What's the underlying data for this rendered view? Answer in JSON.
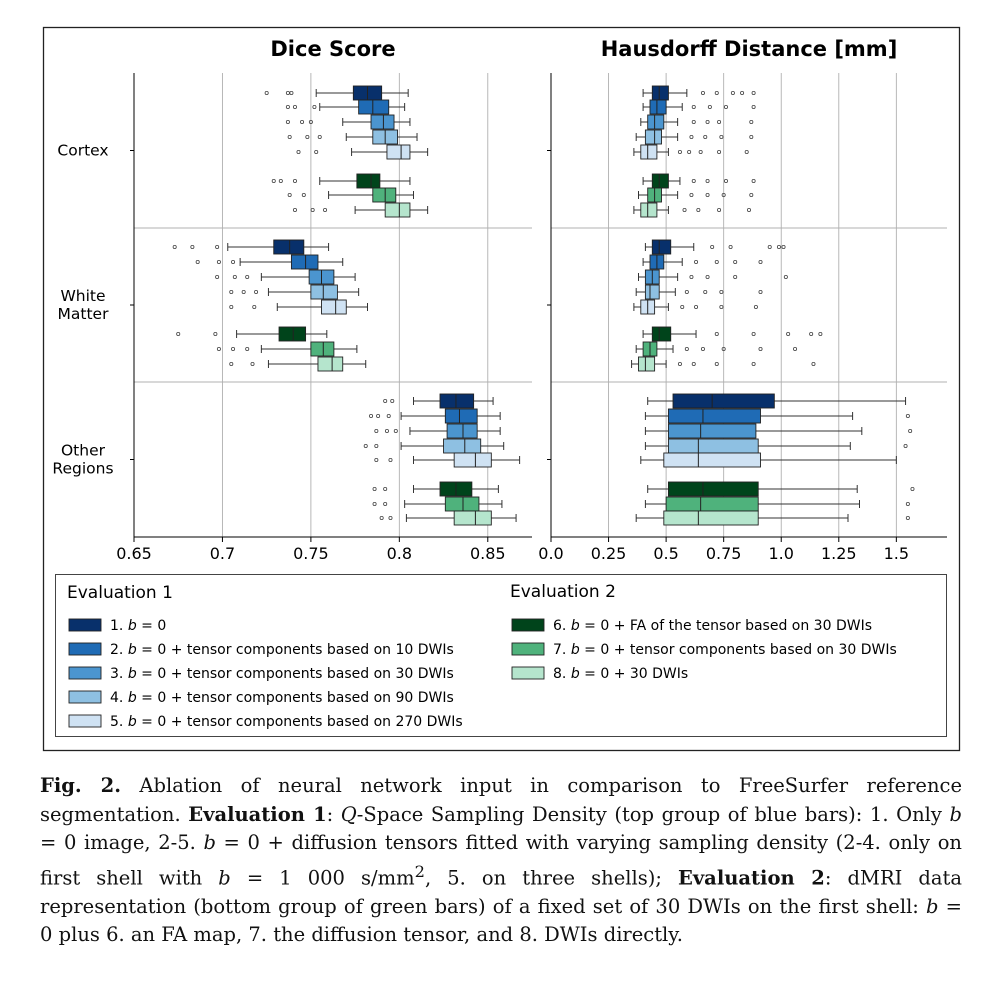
{
  "chart_data": {
    "type": "boxplot",
    "panels": [
      {
        "title": "Dice Score",
        "xlim": [
          0.65,
          0.875
        ],
        "ticks": [
          0.65,
          0.7,
          0.75,
          0.8,
          0.85
        ],
        "tick_labels": [
          "0.65",
          "0.7",
          "0.75",
          "0.8",
          "0.85"
        ],
        "regions": [
          {
            "label": "Cortex",
            "boxes": [
              {
                "series": 1,
                "whislo": 0.753,
                "q1": 0.774,
                "med": 0.782,
                "q3": 0.79,
                "whishi": 0.805,
                "fliers": [
                  0.725,
                  0.737,
                  0.739
                ]
              },
              {
                "series": 2,
                "whislo": 0.755,
                "q1": 0.777,
                "med": 0.785,
                "q3": 0.794,
                "whishi": 0.803,
                "fliers": [
                  0.737,
                  0.741,
                  0.752
                ]
              },
              {
                "series": 3,
                "whislo": 0.768,
                "q1": 0.784,
                "med": 0.791,
                "q3": 0.797,
                "whishi": 0.806,
                "fliers": [
                  0.737,
                  0.745,
                  0.75
                ]
              },
              {
                "series": 4,
                "whislo": 0.77,
                "q1": 0.785,
                "med": 0.792,
                "q3": 0.799,
                "whishi": 0.81,
                "fliers": [
                  0.738,
                  0.748,
                  0.755
                ]
              },
              {
                "series": 5,
                "whislo": 0.773,
                "q1": 0.793,
                "med": 0.801,
                "q3": 0.806,
                "whishi": 0.816,
                "fliers": [
                  0.743,
                  0.753
                ]
              }
            ],
            "boxes_eval2": [
              {
                "series": 6,
                "whislo": 0.755,
                "q1": 0.776,
                "med": 0.784,
                "q3": 0.789,
                "whishi": 0.806,
                "fliers": [
                  0.729,
                  0.733,
                  0.741
                ]
              },
              {
                "series": 7,
                "whislo": 0.76,
                "q1": 0.785,
                "med": 0.792,
                "q3": 0.798,
                "whishi": 0.808,
                "fliers": [
                  0.738,
                  0.746
                ]
              },
              {
                "series": 8,
                "whislo": 0.775,
                "q1": 0.792,
                "med": 0.8,
                "q3": 0.806,
                "whishi": 0.816,
                "fliers": [
                  0.741,
                  0.751,
                  0.758
                ]
              }
            ]
          },
          {
            "label": "White Matter",
            "boxes": [
              {
                "series": 1,
                "whislo": 0.703,
                "q1": 0.729,
                "med": 0.738,
                "q3": 0.746,
                "whishi": 0.76,
                "fliers": [
                  0.673,
                  0.683,
                  0.697
                ]
              },
              {
                "series": 2,
                "whislo": 0.71,
                "q1": 0.739,
                "med": 0.747,
                "q3": 0.754,
                "whishi": 0.768,
                "fliers": [
                  0.686,
                  0.698,
                  0.706
                ]
              },
              {
                "series": 3,
                "whislo": 0.722,
                "q1": 0.749,
                "med": 0.756,
                "q3": 0.763,
                "whishi": 0.775,
                "fliers": [
                  0.697,
                  0.707,
                  0.714
                ]
              },
              {
                "series": 4,
                "whislo": 0.726,
                "q1": 0.75,
                "med": 0.757,
                "q3": 0.765,
                "whishi": 0.777,
                "fliers": [
                  0.705,
                  0.712,
                  0.719
                ]
              },
              {
                "series": 5,
                "whislo": 0.731,
                "q1": 0.756,
                "med": 0.764,
                "q3": 0.77,
                "whishi": 0.782,
                "fliers": [
                  0.705,
                  0.718
                ]
              }
            ],
            "boxes_eval2": [
              {
                "series": 6,
                "whislo": 0.708,
                "q1": 0.732,
                "med": 0.74,
                "q3": 0.747,
                "whishi": 0.759,
                "fliers": [
                  0.675,
                  0.696
                ]
              },
              {
                "series": 7,
                "whislo": 0.722,
                "q1": 0.75,
                "med": 0.757,
                "q3": 0.763,
                "whishi": 0.776,
                "fliers": [
                  0.698,
                  0.706,
                  0.714
                ]
              },
              {
                "series": 8,
                "whislo": 0.726,
                "q1": 0.754,
                "med": 0.762,
                "q3": 0.768,
                "whishi": 0.781,
                "fliers": [
                  0.705,
                  0.717
                ]
              }
            ]
          },
          {
            "label": "Other Regions",
            "boxes": [
              {
                "series": 1,
                "whislo": 0.808,
                "q1": 0.823,
                "med": 0.832,
                "q3": 0.842,
                "whishi": 0.853,
                "fliers": [
                  0.792,
                  0.796
                ]
              },
              {
                "series": 2,
                "whislo": 0.801,
                "q1": 0.826,
                "med": 0.834,
                "q3": 0.844,
                "whishi": 0.857,
                "fliers": [
                  0.784,
                  0.788,
                  0.794
                ]
              },
              {
                "series": 3,
                "whislo": 0.806,
                "q1": 0.827,
                "med": 0.836,
                "q3": 0.844,
                "whishi": 0.857,
                "fliers": [
                  0.787,
                  0.793,
                  0.798
                ]
              },
              {
                "series": 4,
                "whislo": 0.801,
                "q1": 0.825,
                "med": 0.837,
                "q3": 0.846,
                "whishi": 0.859,
                "fliers": [
                  0.781,
                  0.787
                ]
              },
              {
                "series": 5,
                "whislo": 0.808,
                "q1": 0.831,
                "med": 0.843,
                "q3": 0.852,
                "whishi": 0.868,
                "fliers": [
                  0.787,
                  0.795
                ]
              }
            ],
            "boxes_eval2": [
              {
                "series": 6,
                "whislo": 0.808,
                "q1": 0.823,
                "med": 0.832,
                "q3": 0.841,
                "whishi": 0.856,
                "fliers": [
                  0.786,
                  0.792
                ]
              },
              {
                "series": 7,
                "whislo": 0.803,
                "q1": 0.826,
                "med": 0.836,
                "q3": 0.845,
                "whishi": 0.858,
                "fliers": [
                  0.786,
                  0.792
                ]
              },
              {
                "series": 8,
                "whislo": 0.804,
                "q1": 0.831,
                "med": 0.843,
                "q3": 0.852,
                "whishi": 0.866,
                "fliers": [
                  0.79,
                  0.795
                ]
              }
            ]
          }
        ]
      },
      {
        "title": "Hausdorff Distance [mm]",
        "xlim": [
          0.0,
          1.72
        ],
        "ticks": [
          0.0,
          0.25,
          0.5,
          0.75,
          1.0,
          1.25,
          1.5
        ],
        "tick_labels": [
          "0.0",
          "0.25",
          "0.5",
          "0.75",
          "1.0",
          "1.25",
          "1.5"
        ],
        "regions": [
          {
            "label": "Cortex",
            "boxes": [
              {
                "series": 1,
                "whislo": 0.4,
                "q1": 0.44,
                "med": 0.47,
                "q3": 0.51,
                "whishi": 0.59,
                "fliers": [
                  0.66,
                  0.72,
                  0.79,
                  0.83,
                  0.88
                ]
              },
              {
                "series": 2,
                "whislo": 0.4,
                "q1": 0.43,
                "med": 0.46,
                "q3": 0.5,
                "whishi": 0.57,
                "fliers": [
                  0.62,
                  0.69,
                  0.76,
                  0.88
                ]
              },
              {
                "series": 3,
                "whislo": 0.39,
                "q1": 0.42,
                "med": 0.45,
                "q3": 0.49,
                "whishi": 0.55,
                "fliers": [
                  0.62,
                  0.68,
                  0.73,
                  0.87
                ]
              },
              {
                "series": 4,
                "whislo": 0.37,
                "q1": 0.41,
                "med": 0.45,
                "q3": 0.48,
                "whishi": 0.55,
                "fliers": [
                  0.61,
                  0.67,
                  0.74,
                  0.87
                ]
              },
              {
                "series": 5,
                "whislo": 0.36,
                "q1": 0.39,
                "med": 0.42,
                "q3": 0.46,
                "whishi": 0.51,
                "fliers": [
                  0.56,
                  0.6,
                  0.65,
                  0.73,
                  0.85
                ]
              }
            ],
            "boxes_eval2": [
              {
                "series": 6,
                "whislo": 0.4,
                "q1": 0.44,
                "med": 0.47,
                "q3": 0.51,
                "whishi": 0.56,
                "fliers": [
                  0.62,
                  0.68,
                  0.76,
                  0.88
                ]
              },
              {
                "series": 7,
                "whislo": 0.38,
                "q1": 0.42,
                "med": 0.45,
                "q3": 0.48,
                "whishi": 0.55,
                "fliers": [
                  0.61,
                  0.68,
                  0.75,
                  0.87
                ]
              },
              {
                "series": 8,
                "whislo": 0.36,
                "q1": 0.39,
                "med": 0.42,
                "q3": 0.46,
                "whishi": 0.51,
                "fliers": [
                  0.58,
                  0.64,
                  0.73,
                  0.86
                ]
              }
            ]
          },
          {
            "label": "White Matter",
            "boxes": [
              {
                "series": 1,
                "whislo": 0.41,
                "q1": 0.44,
                "med": 0.47,
                "q3": 0.52,
                "whishi": 0.62,
                "fliers": [
                  0.7,
                  0.78,
                  0.95,
                  0.99,
                  1.01
                ]
              },
              {
                "series": 2,
                "whislo": 0.4,
                "q1": 0.43,
                "med": 0.46,
                "q3": 0.49,
                "whishi": 0.57,
                "fliers": [
                  0.63,
                  0.72,
                  0.8,
                  0.91
                ]
              },
              {
                "series": 3,
                "whislo": 0.38,
                "q1": 0.41,
                "med": 0.44,
                "q3": 0.47,
                "whishi": 0.55,
                "fliers": [
                  0.61,
                  0.68,
                  0.8,
                  1.02
                ]
              },
              {
                "series": 4,
                "whislo": 0.37,
                "q1": 0.41,
                "med": 0.43,
                "q3": 0.47,
                "whishi": 0.54,
                "fliers": [
                  0.59,
                  0.67,
                  0.74,
                  0.91
                ]
              },
              {
                "series": 5,
                "whislo": 0.36,
                "q1": 0.39,
                "med": 0.42,
                "q3": 0.45,
                "whishi": 0.51,
                "fliers": [
                  0.57,
                  0.63,
                  0.74,
                  0.89
                ]
              }
            ],
            "boxes_eval2": [
              {
                "series": 6,
                "whislo": 0.4,
                "q1": 0.44,
                "med": 0.47,
                "q3": 0.52,
                "whishi": 0.63,
                "fliers": [
                  0.72,
                  0.88,
                  1.03,
                  1.13,
                  1.17
                ]
              },
              {
                "series": 7,
                "whislo": 0.37,
                "q1": 0.4,
                "med": 0.43,
                "q3": 0.46,
                "whishi": 0.53,
                "fliers": [
                  0.59,
                  0.66,
                  0.75,
                  0.91,
                  1.06
                ]
              },
              {
                "series": 8,
                "whislo": 0.35,
                "q1": 0.38,
                "med": 0.41,
                "q3": 0.45,
                "whishi": 0.5,
                "fliers": [
                  0.56,
                  0.62,
                  0.72,
                  0.88,
                  1.14
                ]
              }
            ]
          },
          {
            "label": "Other Regions",
            "boxes": [
              {
                "series": 1,
                "whislo": 0.42,
                "q1": 0.53,
                "med": 0.7,
                "q3": 0.97,
                "whishi": 1.54,
                "fliers": []
              },
              {
                "series": 2,
                "whislo": 0.41,
                "q1": 0.51,
                "med": 0.66,
                "q3": 0.91,
                "whishi": 1.31,
                "fliers": [
                  1.55
                ]
              },
              {
                "series": 3,
                "whislo": 0.41,
                "q1": 0.51,
                "med": 0.65,
                "q3": 0.89,
                "whishi": 1.35,
                "fliers": [
                  1.56
                ]
              },
              {
                "series": 4,
                "whislo": 0.41,
                "q1": 0.51,
                "med": 0.64,
                "q3": 0.9,
                "whishi": 1.3,
                "fliers": [
                  1.54
                ]
              },
              {
                "series": 5,
                "whislo": 0.39,
                "q1": 0.49,
                "med": 0.64,
                "q3": 0.91,
                "whishi": 1.5,
                "fliers": []
              }
            ],
            "boxes_eval2": [
              {
                "series": 6,
                "whislo": 0.42,
                "q1": 0.51,
                "med": 0.66,
                "q3": 0.9,
                "whishi": 1.33,
                "fliers": [
                  1.57
                ]
              },
              {
                "series": 7,
                "whislo": 0.41,
                "q1": 0.5,
                "med": 0.65,
                "q3": 0.9,
                "whishi": 1.34,
                "fliers": [
                  1.55
                ]
              },
              {
                "series": 8,
                "whislo": 0.37,
                "q1": 0.49,
                "med": 0.64,
                "q3": 0.9,
                "whishi": 1.29,
                "fliers": [
                  1.55
                ]
              }
            ]
          }
        ]
      }
    ],
    "legend": {
      "placement": "bottom",
      "groups": [
        {
          "title": "Evaluation 1",
          "entries": [
            {
              "series": 1,
              "color": "#08306b",
              "prefix": "1. ",
              "suffix": ""
            },
            {
              "series": 2,
              "color": "#1f6bb5",
              "prefix": "2. ",
              "suffix": " + tensor components based on 10 DWIs"
            },
            {
              "series": 3,
              "color": "#4b95cf",
              "prefix": "3. ",
              "suffix": " + tensor components based on 30 DWIs"
            },
            {
              "series": 4,
              "color": "#8ec0e2",
              "prefix": "4. ",
              "suffix": " + tensor components based on 90 DWIs"
            },
            {
              "series": 5,
              "color": "#cfe2f3",
              "prefix": "5. ",
              "suffix": " + tensor components based on 270 DWIs"
            }
          ]
        },
        {
          "title": "Evaluation 2",
          "entries": [
            {
              "series": 6,
              "color": "#00441b",
              "prefix": "6. ",
              "suffix": " + FA of the tensor based on 30 DWIs"
            },
            {
              "series": 7,
              "color": "#4fb27c",
              "prefix": "7. ",
              "suffix": " + tensor components based on 30 DWIs"
            },
            {
              "series": 8,
              "color": "#b5e5cd",
              "prefix": "8. ",
              "suffix": " + 30 DWIs"
            }
          ]
        }
      ],
      "b_eq_zero": "b = 0"
    }
  },
  "caption": {
    "fig_label": "Fig. 2.",
    "seg1": " Ablation of neural network input in comparison to FreeSurfer reference segmentation. ",
    "eval1_label": "Evaluation 1",
    "seg2": ": ",
    "q": "Q",
    "seg3": "-Space Sampling Density (top group of blue bars): 1. Only ",
    "b1": "b",
    "seg4": " = 0 image, 2-5. ",
    "b2": "b",
    "seg5": " = 0 + diffusion tensors fitted with varying sampling density (2-4. only on first shell with ",
    "b3": "b",
    "seg6": " = 1 000 s/mm",
    "sup2": "2",
    "seg7": ", 5. on three shells); ",
    "eval2_label": "Evaluation 2",
    "seg8": ": dMRI data representation (bottom group of green bars) of a fixed set of 30 DWIs on the first shell: ",
    "b4": "b",
    "seg9": " = 0 plus 6. an FA map, 7. the diffusion tensor, and 8. DWIs directly."
  }
}
